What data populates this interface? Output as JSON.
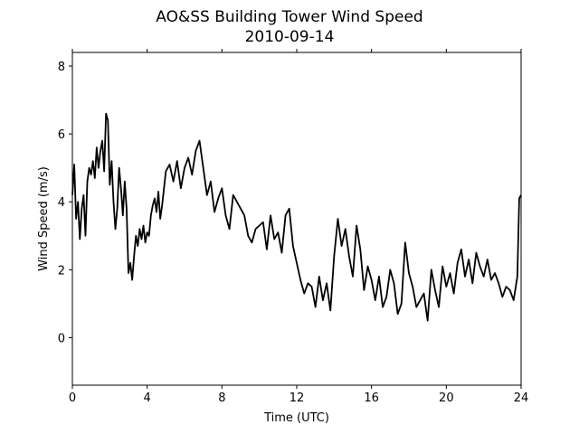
{
  "chart_data": {
    "type": "line",
    "title": "AO&SS Building Tower Wind Speed",
    "subtitle": "2010-09-14",
    "xlabel": "Time (UTC)",
    "ylabel": "Wind Speed (m/s)",
    "xlim": [
      0,
      24
    ],
    "ylim": [
      -1.4,
      8.4
    ],
    "xticks": [
      0,
      4,
      8,
      12,
      16,
      20,
      24
    ],
    "yticks": [
      0,
      2,
      4,
      6,
      8
    ],
    "grid": false,
    "line_color": "#000000",
    "series": [
      {
        "x": [
          0.0,
          0.1,
          0.2,
          0.3,
          0.4,
          0.5,
          0.6,
          0.7,
          0.8,
          0.9,
          1.0,
          1.1,
          1.2,
          1.3,
          1.4,
          1.5,
          1.6,
          1.7,
          1.8,
          1.9,
          2.0,
          2.1,
          2.2,
          2.3,
          2.4,
          2.5,
          2.6,
          2.7,
          2.8,
          2.9,
          3.0,
          3.1,
          3.2,
          3.3,
          3.4,
          3.5,
          3.6,
          3.7,
          3.8,
          3.9,
          4.0,
          4.1,
          4.2,
          4.3,
          4.4,
          4.5,
          4.6,
          4.7,
          4.8,
          4.9,
          5.0,
          5.2,
          5.4,
          5.6,
          5.8,
          6.0,
          6.2,
          6.4,
          6.6,
          6.8,
          7.0,
          7.2,
          7.4,
          7.6,
          7.8,
          8.0,
          8.2,
          8.4,
          8.6,
          8.8,
          9.0,
          9.2,
          9.4,
          9.6,
          9.8,
          10.0,
          10.2,
          10.4,
          10.6,
          10.8,
          11.0,
          11.2,
          11.4,
          11.6,
          11.8,
          12.0,
          12.2,
          12.4,
          12.6,
          12.8,
          13.0,
          13.2,
          13.4,
          13.6,
          13.8,
          14.0,
          14.2,
          14.4,
          14.6,
          14.8,
          15.0,
          15.2,
          15.4,
          15.6,
          15.8,
          16.0,
          16.2,
          16.4,
          16.6,
          16.8,
          17.0,
          17.2,
          17.4,
          17.6,
          17.8,
          18.0,
          18.2,
          18.4,
          18.6,
          18.8,
          19.0,
          19.2,
          19.4,
          19.6,
          19.8,
          20.0,
          20.2,
          20.4,
          20.6,
          20.8,
          21.0,
          21.2,
          21.4,
          21.6,
          21.8,
          22.0,
          22.2,
          22.4,
          22.6,
          22.8,
          23.0,
          23.2,
          23.4,
          23.6,
          23.8,
          23.9,
          24.0
        ],
        "y": [
          4.2,
          5.1,
          3.5,
          4.0,
          2.9,
          3.8,
          4.2,
          3.0,
          4.6,
          5.0,
          4.8,
          5.2,
          4.7,
          5.6,
          5.0,
          5.5,
          5.8,
          4.9,
          6.6,
          6.4,
          4.5,
          5.2,
          4.0,
          3.2,
          3.8,
          5.0,
          4.4,
          3.6,
          4.6,
          3.8,
          1.9,
          2.2,
          1.7,
          2.4,
          3.0,
          2.7,
          3.2,
          2.9,
          3.3,
          2.8,
          3.1,
          3.0,
          3.6,
          3.9,
          4.1,
          3.7,
          4.3,
          3.5,
          3.9,
          4.4,
          4.9,
          5.1,
          4.6,
          5.2,
          4.4,
          5.0,
          5.3,
          4.8,
          5.5,
          5.8,
          5.0,
          4.2,
          4.6,
          3.7,
          4.1,
          4.4,
          3.6,
          3.2,
          4.2,
          4.0,
          3.8,
          3.6,
          3.0,
          2.8,
          3.2,
          3.3,
          3.4,
          2.6,
          3.6,
          2.9,
          3.1,
          2.5,
          3.6,
          3.8,
          2.7,
          2.2,
          1.7,
          1.3,
          1.6,
          1.5,
          0.9,
          1.8,
          1.1,
          1.6,
          0.8,
          2.4,
          3.5,
          2.7,
          3.2,
          2.4,
          1.8,
          3.3,
          2.6,
          1.4,
          2.1,
          1.7,
          1.1,
          1.8,
          0.9,
          1.2,
          2.0,
          1.6,
          0.7,
          1.0,
          2.8,
          1.9,
          1.5,
          0.9,
          1.1,
          1.3,
          0.5,
          2.0,
          1.4,
          0.9,
          2.1,
          1.5,
          1.9,
          1.3,
          2.2,
          2.6,
          1.8,
          2.3,
          1.6,
          2.5,
          2.1,
          1.8,
          2.3,
          1.7,
          1.9,
          1.6,
          1.2,
          1.5,
          1.4,
          1.1,
          1.8,
          4.1,
          4.2
        ]
      }
    ]
  }
}
